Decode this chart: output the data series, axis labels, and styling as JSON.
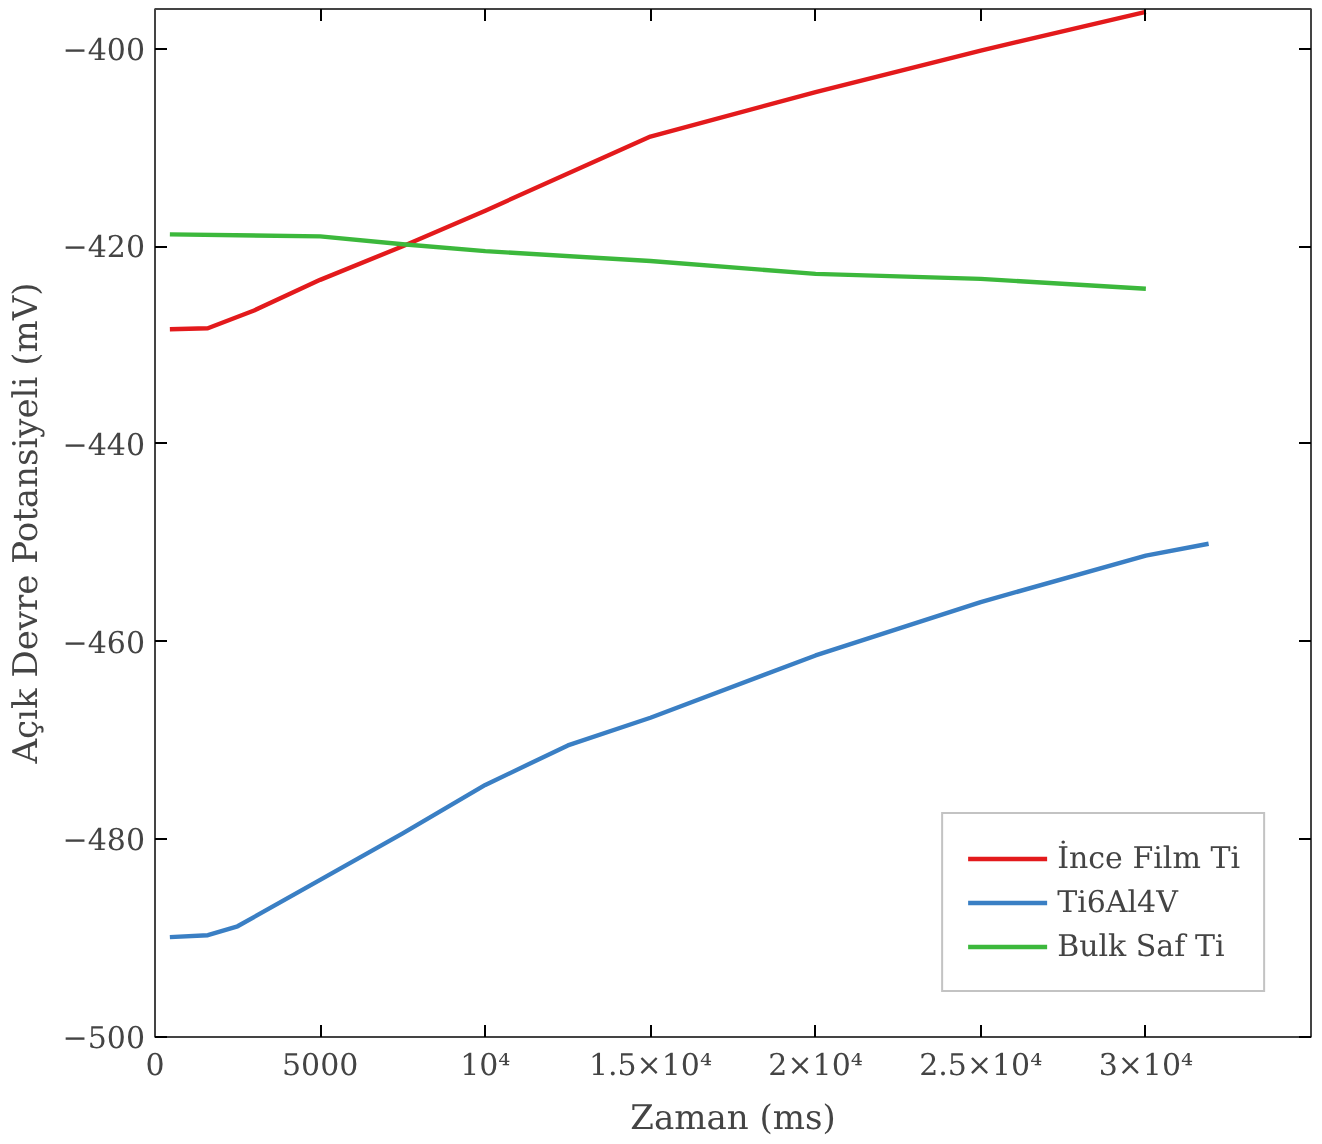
{
  "chart_data": {
    "type": "line",
    "xlabel": "Zaman (ms)",
    "ylabel": "Açık Devre Potansiyeli (mV)",
    "xlim": [
      0,
      35000
    ],
    "ylim": [
      -500,
      -396
    ],
    "xticks": [
      0,
      5000,
      {
        "value": 10000,
        "label": "10⁴"
      },
      {
        "value": 15000,
        "label": "1.5×10⁴"
      },
      {
        "value": 20000,
        "label": "2×10⁴"
      },
      {
        "value": 25000,
        "label": "2.5×10⁴"
      },
      {
        "value": 30000,
        "label": "3×10⁴"
      }
    ],
    "yticks": [
      -500,
      -480,
      -460,
      -440,
      -420,
      -400
    ],
    "grid": false,
    "legend": "bottom right",
    "line_style": "solid",
    "marker": "none",
    "series": [
      {
        "name": "İnce Film Ti",
        "color": "#e31a1c",
        "x": [
          450,
          1600,
          3000,
          5000,
          7500,
          10000,
          15000,
          20000,
          25000,
          30000
        ],
        "values": [
          -428.4,
          -428.3,
          -426.5,
          -423.4,
          -420,
          -416.4,
          -408.9,
          -404.4,
          -400.2,
          -396.3
        ]
      },
      {
        "name": "Ti6Al4V",
        "color": "#3a7fc4",
        "x": [
          450,
          1600,
          2500,
          5000,
          7500,
          10000,
          12500,
          15000,
          20000,
          25000,
          30000,
          31900
        ],
        "values": [
          -489.9,
          -489.7,
          -488.8,
          -484.1,
          -479.4,
          -474.5,
          -470.5,
          -467.7,
          -461.4,
          -456,
          -451.3,
          -450.1
        ]
      },
      {
        "name": "Bulk Saf Ti",
        "color": "#3cb83c",
        "x": [
          450,
          5000,
          7500,
          10000,
          15000,
          20000,
          25000,
          30000
        ],
        "values": [
          -418.8,
          -419,
          -419.8,
          -420.5,
          -421.5,
          -422.8,
          -423.3,
          -424.3
        ]
      }
    ]
  }
}
